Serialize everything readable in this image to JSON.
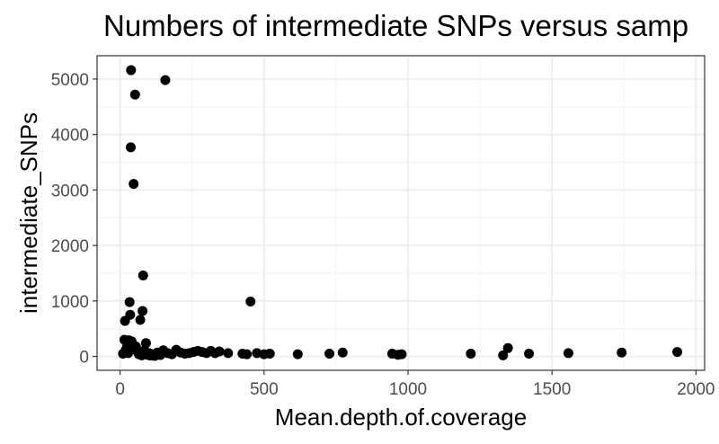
{
  "chart_data": {
    "type": "scatter",
    "title": "Numbers of intermediate SNPs versus samp",
    "xlabel": "Mean.depth.of.coverage",
    "ylabel": "intermediate_SNPs",
    "xlim": [
      -80,
      2030
    ],
    "ylim": [
      -250,
      5420
    ],
    "x_ticks": [
      0,
      500,
      1000,
      1500,
      2000
    ],
    "y_ticks": [
      0,
      1000,
      2000,
      3000,
      4000,
      5000
    ],
    "grid": true,
    "legend": "none",
    "point_color": "#000000",
    "points": [
      {
        "x": 38,
        "y": 5160
      },
      {
        "x": 157,
        "y": 4980
      },
      {
        "x": 52,
        "y": 4720
      },
      {
        "x": 37,
        "y": 3770
      },
      {
        "x": 47,
        "y": 3110
      },
      {
        "x": 80,
        "y": 1460
      },
      {
        "x": 453,
        "y": 990
      },
      {
        "x": 33,
        "y": 980
      },
      {
        "x": 78,
        "y": 820
      },
      {
        "x": 35,
        "y": 750
      },
      {
        "x": 17,
        "y": 640
      },
      {
        "x": 70,
        "y": 660
      },
      {
        "x": 15,
        "y": 300
      },
      {
        "x": 30,
        "y": 290
      },
      {
        "x": 40,
        "y": 270
      },
      {
        "x": 90,
        "y": 240
      },
      {
        "x": 25,
        "y": 200
      },
      {
        "x": 55,
        "y": 180
      },
      {
        "x": 20,
        "y": 120
      },
      {
        "x": 45,
        "y": 130
      },
      {
        "x": 60,
        "y": 90
      },
      {
        "x": 85,
        "y": 110
      },
      {
        "x": 100,
        "y": 60
      },
      {
        "x": 115,
        "y": 40
      },
      {
        "x": 130,
        "y": 70
      },
      {
        "x": 150,
        "y": 110
      },
      {
        "x": 165,
        "y": 60
      },
      {
        "x": 180,
        "y": 40
      },
      {
        "x": 195,
        "y": 120
      },
      {
        "x": 210,
        "y": 70
      },
      {
        "x": 225,
        "y": 50
      },
      {
        "x": 240,
        "y": 60
      },
      {
        "x": 255,
        "y": 80
      },
      {
        "x": 270,
        "y": 100
      },
      {
        "x": 285,
        "y": 80
      },
      {
        "x": 300,
        "y": 60
      },
      {
        "x": 315,
        "y": 100
      },
      {
        "x": 330,
        "y": 60
      },
      {
        "x": 345,
        "y": 90
      },
      {
        "x": 375,
        "y": 60
      },
      {
        "x": 425,
        "y": 50
      },
      {
        "x": 440,
        "y": 40
      },
      {
        "x": 475,
        "y": 60
      },
      {
        "x": 500,
        "y": 40
      },
      {
        "x": 520,
        "y": 50
      },
      {
        "x": 617,
        "y": 40
      },
      {
        "x": 727,
        "y": 50
      },
      {
        "x": 773,
        "y": 70
      },
      {
        "x": 945,
        "y": 50
      },
      {
        "x": 965,
        "y": 30
      },
      {
        "x": 978,
        "y": 40
      },
      {
        "x": 1218,
        "y": 50
      },
      {
        "x": 1330,
        "y": 20
      },
      {
        "x": 1347,
        "y": 150
      },
      {
        "x": 1420,
        "y": 50
      },
      {
        "x": 1557,
        "y": 60
      },
      {
        "x": 1742,
        "y": 70
      },
      {
        "x": 1935,
        "y": 80
      },
      {
        "x": 10,
        "y": 50
      },
      {
        "x": 28,
        "y": 60
      },
      {
        "x": 65,
        "y": 40
      },
      {
        "x": 75,
        "y": 20
      },
      {
        "x": 95,
        "y": 30
      },
      {
        "x": 105,
        "y": 15
      },
      {
        "x": 120,
        "y": 10
      },
      {
        "x": 140,
        "y": 25
      }
    ]
  }
}
